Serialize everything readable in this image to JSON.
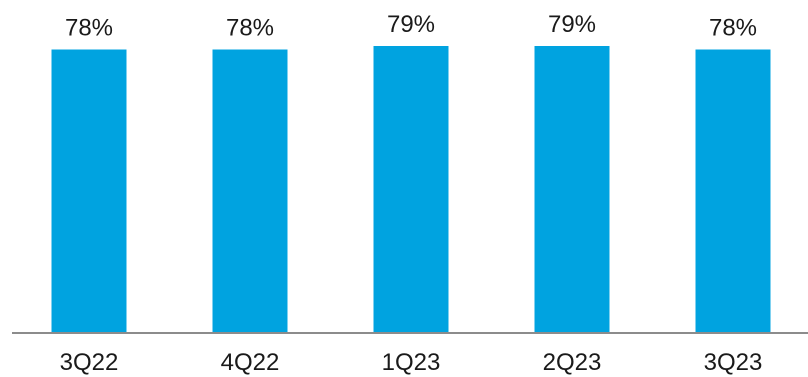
{
  "chart_data": {
    "type": "bar",
    "categories": [
      "3Q22",
      "4Q22",
      "1Q23",
      "2Q23",
      "3Q23"
    ],
    "values": [
      78,
      78,
      79,
      79,
      78
    ],
    "data_labels": [
      "78%",
      "78%",
      "79%",
      "79%",
      "78%"
    ],
    "unit": "%",
    "title": "",
    "xlabel": "",
    "ylabel": "",
    "ylim": [
      0,
      79
    ],
    "grid": false,
    "legend": "none",
    "colors": {
      "bar": "#00a3e0",
      "axis": "#8c8c8c",
      "text": "#1a1a1a"
    }
  }
}
